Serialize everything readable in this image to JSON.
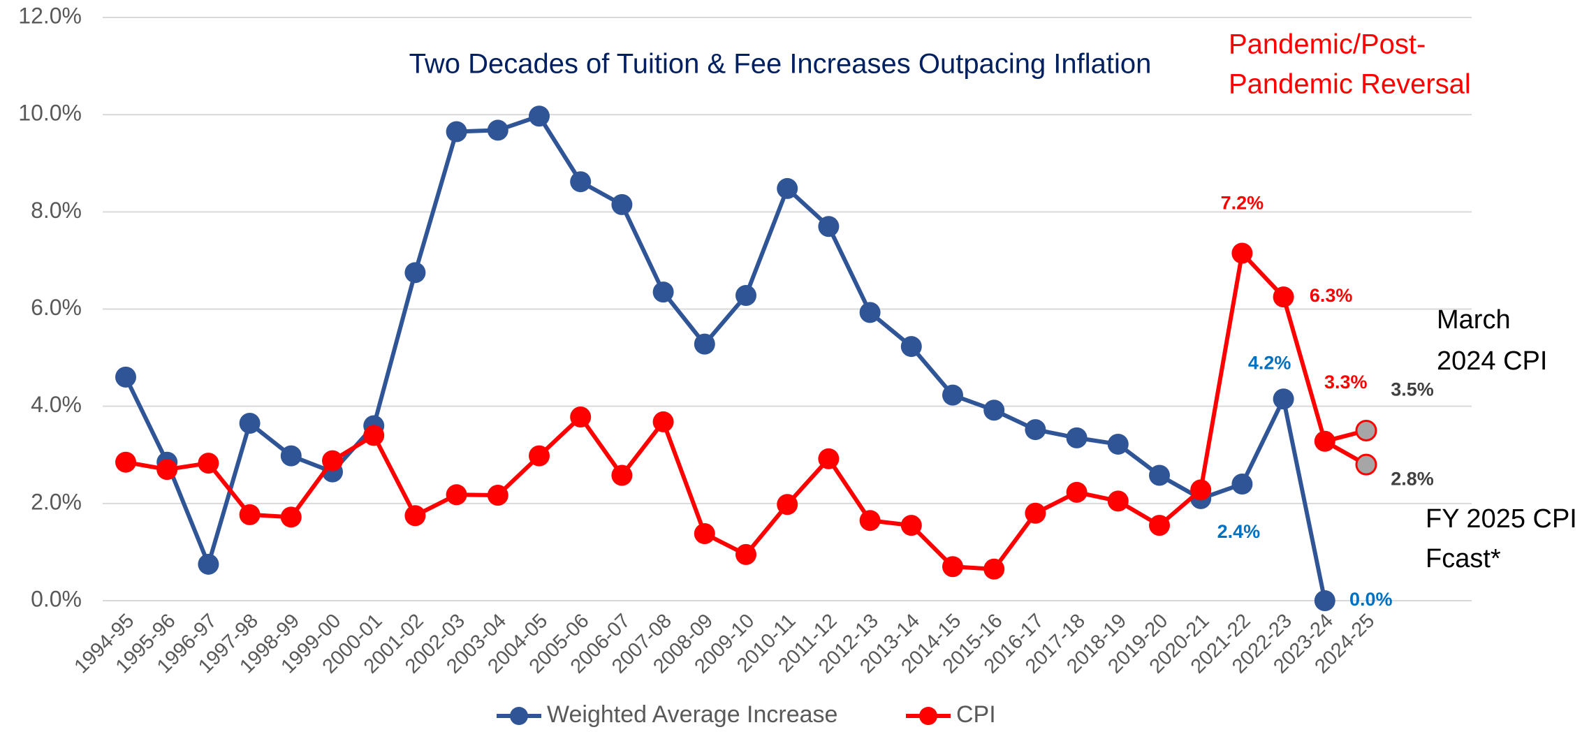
{
  "chart_data": {
    "type": "line",
    "title": "Two Decades of Tuition & Fee Increases Outpacing Inflation",
    "subtitle": [
      "Pandemic/Post-",
      "Pandemic Reversal"
    ],
    "categories": [
      "1994-95",
      "1995-96",
      "1996-97",
      "1997-98",
      "1998-99",
      "1999-00",
      "2000-01",
      "2001-02",
      "2002-03",
      "2003-04",
      "2004-05",
      "2005-06",
      "2006-07",
      "2007-08",
      "2008-09",
      "2009-10",
      "2010-11",
      "2011-12",
      "2012-13",
      "2013-14",
      "2014-15",
      "2015-16",
      "2016-17",
      "2017-18",
      "2018-19",
      "2019-20",
      "2020-21",
      "2021-22",
      "2022-23",
      "2023-24",
      "2024-25"
    ],
    "series": [
      {
        "name": "Weighted Average Increase",
        "color": "#2f5597",
        "label_color": "#0070c0",
        "values": [
          4.6,
          2.85,
          0.75,
          3.65,
          2.98,
          2.65,
          3.6,
          6.75,
          9.65,
          9.68,
          9.97,
          8.62,
          8.15,
          6.35,
          5.28,
          6.28,
          8.48,
          7.7,
          5.93,
          5.23,
          4.23,
          3.92,
          3.52,
          3.35,
          3.22,
          2.58,
          2.1,
          2.4,
          4.15,
          0.0,
          null
        ],
        "value_labels": [
          null,
          null,
          null,
          null,
          null,
          null,
          null,
          null,
          null,
          null,
          null,
          null,
          null,
          null,
          null,
          null,
          null,
          null,
          null,
          null,
          null,
          null,
          null,
          null,
          null,
          null,
          null,
          "2.4%",
          "4.2%",
          "0.0%",
          null
        ]
      },
      {
        "name": "CPI",
        "color": "#ff0000",
        "label_color": "#ff0000",
        "values": [
          2.85,
          2.7,
          2.83,
          1.77,
          1.72,
          2.88,
          3.4,
          1.75,
          2.18,
          2.17,
          2.98,
          3.78,
          2.58,
          3.68,
          1.38,
          0.95,
          1.98,
          2.92,
          1.65,
          1.55,
          0.7,
          0.65,
          1.8,
          2.23,
          2.05,
          1.55,
          2.28,
          7.15,
          6.25,
          3.28,
          null
        ],
        "value_labels": [
          null,
          null,
          null,
          null,
          null,
          null,
          null,
          null,
          null,
          null,
          null,
          null,
          null,
          null,
          null,
          null,
          null,
          null,
          null,
          null,
          null,
          null,
          null,
          null,
          null,
          null,
          null,
          "7.2%",
          "6.3%",
          "3.3%",
          null
        ]
      }
    ],
    "annotations": [
      {
        "text": [
          "March",
          "2024 CPI"
        ],
        "x": "2024-25",
        "value": 3.5,
        "label": "3.5%",
        "color": "#a6a6a6"
      },
      {
        "text": [
          "FY 2025 CPI",
          "Fcast*"
        ],
        "x": "2024-25",
        "value": 2.8,
        "label": "2.8%",
        "color": "#a6a6a6"
      }
    ],
    "ylim": [
      0,
      12
    ],
    "yticks": [
      {
        "value": 0,
        "label": "0.0%"
      },
      {
        "value": 2,
        "label": "2.0%"
      },
      {
        "value": 4,
        "label": "4.0%"
      },
      {
        "value": 6,
        "label": "6.0%"
      },
      {
        "value": 8,
        "label": "8.0%"
      },
      {
        "value": 10,
        "label": "10.0%"
      },
      {
        "value": 12,
        "label": "12.0%"
      }
    ],
    "grid": true,
    "legend": "bottom"
  }
}
